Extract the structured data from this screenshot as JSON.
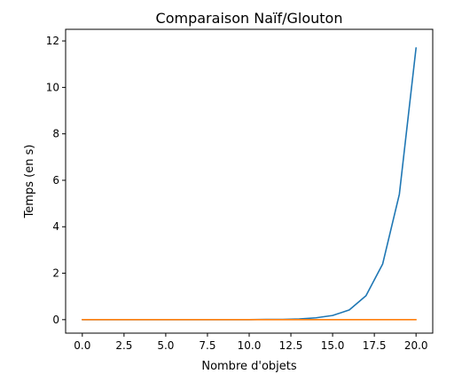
{
  "chart_data": {
    "type": "line",
    "title": "Comparaison Naïf/Glouton",
    "xlabel": "Nombre d'objets",
    "ylabel": "Temps (en s)",
    "xlim": [
      -1,
      21
    ],
    "ylim": [
      -0.58,
      12.5
    ],
    "grid": false,
    "x_ticks": [
      0.0,
      2.5,
      5.0,
      7.5,
      10.0,
      12.5,
      15.0,
      17.5,
      20.0
    ],
    "x_tick_labels": [
      "0.0",
      "2.5",
      "5.0",
      "7.5",
      "10.0",
      "12.5",
      "15.0",
      "17.5",
      "20.0"
    ],
    "y_ticks": [
      0,
      2,
      4,
      6,
      8,
      10,
      12
    ],
    "y_tick_labels": [
      "0",
      "2",
      "4",
      "6",
      "8",
      "10",
      "12"
    ],
    "x": [
      0,
      1,
      2,
      3,
      4,
      5,
      6,
      7,
      8,
      9,
      10,
      11,
      12,
      13,
      14,
      15,
      16,
      17,
      18,
      19,
      20
    ],
    "series": [
      {
        "color": "#1f77b4",
        "values": [
          0.0,
          0.0,
          0.0,
          0.0,
          0.0,
          0.0,
          0.0,
          0.0,
          0.0,
          0.0,
          0.0,
          0.01,
          0.01,
          0.03,
          0.08,
          0.18,
          0.42,
          1.03,
          2.4,
          5.4,
          11.7
        ]
      },
      {
        "color": "#ff7f0e",
        "values": [
          0.0,
          0.0,
          0.0,
          0.0,
          0.0,
          0.0,
          0.0,
          0.0,
          0.0,
          0.0,
          0.0,
          0.0,
          0.0,
          0.0,
          0.0,
          0.0,
          0.0,
          0.0,
          0.0,
          0.0,
          0.0
        ]
      }
    ]
  }
}
